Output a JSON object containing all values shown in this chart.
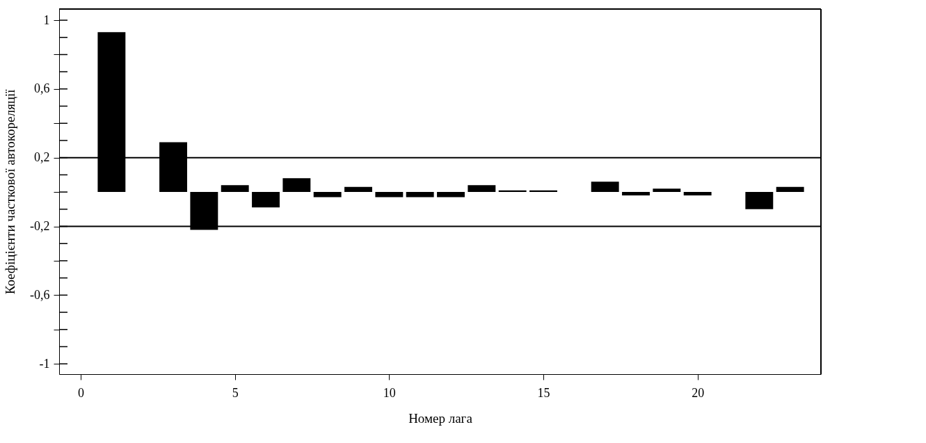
{
  "chart_data": {
    "type": "bar",
    "xlabel": "Номер лага",
    "ylabel": "Коефіцієнти часткової автокореляції",
    "x": [
      1,
      2,
      3,
      4,
      5,
      6,
      7,
      8,
      9,
      10,
      11,
      12,
      13,
      14,
      15,
      16,
      17,
      18,
      19,
      20,
      21,
      22,
      23
    ],
    "values": [
      0.93,
      0.0,
      0.29,
      -0.22,
      0.04,
      -0.09,
      0.08,
      -0.03,
      0.03,
      -0.03,
      -0.03,
      -0.03,
      0.04,
      0.01,
      0.01,
      null,
      0.06,
      -0.02,
      0.02,
      -0.02,
      null,
      -0.1,
      0.03
    ],
    "color": "#000000",
    "xlim": [
      -0.7,
      24
    ],
    "xticks": [
      0,
      5,
      10,
      15,
      20
    ],
    "ylim": [
      -1.06,
      1.065
    ],
    "yticks": [
      {
        "value": -1,
        "label": "-1"
      },
      {
        "value": -0.9,
        "label": null
      },
      {
        "value": -0.8,
        "label": null
      },
      {
        "value": -0.7,
        "label": null
      },
      {
        "value": -0.6,
        "label": "-0,6"
      },
      {
        "value": -0.5,
        "label": null
      },
      {
        "value": -0.4,
        "label": null
      },
      {
        "value": -0.3,
        "label": null
      },
      {
        "value": -0.2,
        "label": "-0,2"
      },
      {
        "value": -0.1,
        "label": null
      },
      {
        "value": 0,
        "label": null
      },
      {
        "value": 0.1,
        "label": null
      },
      {
        "value": 0.2,
        "label": "0,2"
      },
      {
        "value": 0.3,
        "label": null
      },
      {
        "value": 0.4,
        "label": null
      },
      {
        "value": 0.5,
        "label": null
      },
      {
        "value": 0.6,
        "label": "0,6"
      },
      {
        "value": 0.7,
        "label": null
      },
      {
        "value": 0.8,
        "label": null
      },
      {
        "value": 0.9,
        "label": null
      },
      {
        "value": 1,
        "label": "1"
      }
    ],
    "ref_lines": [
      {
        "axis": "y",
        "value": 0.2,
        "color": "#000000"
      },
      {
        "axis": "y",
        "value": -0.2,
        "color": "#000000"
      }
    ],
    "grid": false
  }
}
